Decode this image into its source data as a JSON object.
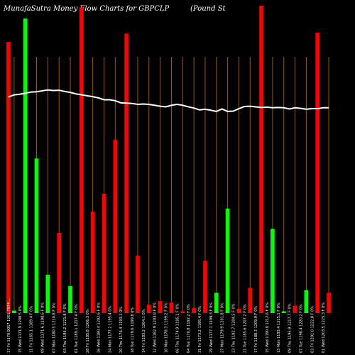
{
  "header": {
    "title": "MunafaSutra  Money Flow  Charts for GBPCLP",
    "subtitle": "(Pound St"
  },
  "chart_data": {
    "type": "bar",
    "title": "MunafaSutra  Money Flow  Charts for GBPCLP",
    "subtitle": "(Pound St",
    "ylim": [
      0,
      100
    ],
    "colors": {
      "up": "#00ff00",
      "down": "#ff0000",
      "line": "#ffffff",
      "grid": "#a05a00",
      "background": "#000000"
    },
    "categories": [
      "17 Fri 1170.9057 1201.7974 ...",
      "16 Thu 1168.0271 1195.7 F 0%",
      "15 Wed 1171.9 1200.5 0%",
      "14 Tue 1172.6 1194.8%",
      "11 Fri 1165.1 1189.4 F 0%",
      "10 Thu 1166.4 1199.2 F 0%",
      "09 Wed 1171.6 1198.6 F 0%",
      "08 Tue 1174.8 1201.1 0%",
      "07 Mon 1180.5 1210.8 F 0%",
      "04 Fri 1183.4 1219.3 0%",
      "03 Thu 1186.2 1221.8 F 0%",
      "02 Wed 1188.6 1220.7 0%",
      "01 Tue 1189.1 1217.4 F 0%",
      "31 Mon 1187.2 1211.9 F 0%",
      "28 Fri 1185.8 1206.3 0%",
      "27 Thu 1182.9 1204.9 0%",
      "26 Wed 1180.4 1202.6 F 0%",
      "25 Tue 1179.6 1198.7 F 0%",
      "24 Mon 1177.2 1195.4 0%",
      "21 Fri 1175.7 1193.2 F 0%",
      "20 Thu 1176.4 1193.1 0%",
      "19 Wed 1178.2 1196.5 F 0%",
      "18 Tue 1179.6 1199.8 0%",
      "17 Mon 1181.5 1202.4 F 0%",
      "14 Fri 1183.2 1204.1 0%",
      "13 Thu 1184.6 1205.7 F 0%",
      "12 Wed 1182.9 1203.8 F 0%",
      "11 Tue 1180.1 1201.3 0%",
      "10 Mon 1178.3 1199.2 F 0%",
      "07 Fri 1176.4 1196.8 0%",
      "06 Thu 1174.9 1195.1 F 0%",
      "05 Wed 1172.3 1193.6 0%",
      "04 Tue 1170.8 1192.2 F 0%",
      "03 Mon 1171.5 1193.9 0%",
      "31 Fri 1173.2 1195.4 F 0%",
      "30 Thu 1175.6 1197.7 0%",
      "29 Wed 1177.1 1199.3 F 0%",
      "28 Tue 1178.5 1200.6 0%",
      "27 Mon 1179.9 1201.8 F 0%",
      "24 Fri 1181.2 1203.1 0%",
      "23 Thu 1182.7 1204.5 F 0%",
      "22 Wed 1184.1 1205.9 0%",
      "21 Tue 1185.6 1207.2 F 0%",
      "20 Mon 1186.9 1208.6 0%",
      "17 Fri 1188.3 1209.9 F 0%",
      "16 Thu 1189.6 1211.3 0%",
      "15 Wed 1190.8 1212.6 F 0%",
      "14 Tue 1192.1 1213.9 0%",
      "13 Mon 1193.4 1215.1 F 0%",
      "10 Fri 1194.6 1216.4 0%",
      "09 Thu 1195.9 1217.7 F 0%",
      "08 Wed 1197.2 1218.9 0%",
      "07 Tue 1198.4 1220.2 F 0%",
      "06 Mon 1199.7 1221.5 0%",
      "03 Fri 1201.0 1222.8 F 0%",
      "02 Thu 1202.2 1224.0 0%",
      "01 Wed 1203.5 1225.3 F 0%",
      "31 Tue 1204.7 1226.6 0%"
    ],
    "series": [
      {
        "kind": "bars",
        "values": [
          {
            "v": 88.2,
            "c": "down"
          },
          {
            "v": 0.8,
            "c": "up"
          },
          {
            "v": 0,
            "c": "up"
          },
          {
            "v": 95.8,
            "c": "up"
          },
          {
            "v": 0,
            "c": "up"
          },
          {
            "v": 50.3,
            "c": "up"
          },
          {
            "v": 0,
            "c": "up"
          },
          {
            "v": 12.5,
            "c": "up"
          },
          {
            "v": 0,
            "c": "up"
          },
          {
            "v": 26.1,
            "c": "down"
          },
          {
            "v": 0,
            "c": "up"
          },
          {
            "v": 8.8,
            "c": "up"
          },
          {
            "v": 0,
            "c": "up"
          },
          {
            "v": 99.5,
            "c": "down"
          },
          {
            "v": 0,
            "c": "up"
          },
          {
            "v": 33.0,
            "c": "down"
          },
          {
            "v": 0,
            "c": "up"
          },
          {
            "v": 38.8,
            "c": "down"
          },
          {
            "v": 0,
            "c": "up"
          },
          {
            "v": 56.4,
            "c": "down"
          },
          {
            "v": 0,
            "c": "up"
          },
          {
            "v": 90.9,
            "c": "down"
          },
          {
            "v": 0,
            "c": "up"
          },
          {
            "v": 18.7,
            "c": "down"
          },
          {
            "v": 0,
            "c": "up"
          },
          {
            "v": 2.7,
            "c": "down"
          },
          {
            "v": 0,
            "c": "up"
          },
          {
            "v": 3.9,
            "c": "down"
          },
          {
            "v": 0,
            "c": "up"
          },
          {
            "v": 3.4,
            "c": "down"
          },
          {
            "v": 0,
            "c": "up"
          },
          {
            "v": 0.6,
            "c": "down"
          },
          {
            "v": 0,
            "c": "up"
          },
          {
            "v": 1.6,
            "c": "down"
          },
          {
            "v": 0,
            "c": "up"
          },
          {
            "v": 17.0,
            "c": "down"
          },
          {
            "v": 0,
            "c": "up"
          },
          {
            "v": 6.6,
            "c": "up"
          },
          {
            "v": 0,
            "c": "up"
          },
          {
            "v": 34.0,
            "c": "up"
          },
          {
            "v": 0,
            "c": "up"
          },
          {
            "v": 1.4,
            "c": "down"
          },
          {
            "v": 0,
            "c": "up"
          },
          {
            "v": 8.2,
            "c": "down"
          },
          {
            "v": 0,
            "c": "up"
          },
          {
            "v": 100,
            "c": "down"
          },
          {
            "v": 0,
            "c": "up"
          },
          {
            "v": 27.4,
            "c": "up"
          },
          {
            "v": 0,
            "c": "up"
          },
          {
            "v": 0.6,
            "c": "up"
          },
          {
            "v": 0,
            "c": "up"
          },
          {
            "v": 2.4,
            "c": "down"
          },
          {
            "v": 0,
            "c": "up"
          },
          {
            "v": 7.5,
            "c": "up"
          },
          {
            "v": 0,
            "c": "up"
          },
          {
            "v": 91.2,
            "c": "down"
          },
          {
            "v": 0,
            "c": "up"
          },
          {
            "v": 6.6,
            "c": "down"
          }
        ]
      }
    ],
    "line": [
      70.3,
      71.0,
      71.2,
      71.5,
      71.9,
      72.0,
      72.3,
      72.6,
      72.4,
      72.5,
      72.1,
      71.8,
      71.3,
      71.0,
      70.7,
      70.4,
      70.0,
      69.4,
      69.4,
      69.1,
      68.4,
      68.3,
      68.2,
      67.9,
      68.0,
      67.9,
      67.6,
      67.3,
      67.1,
      67.6,
      67.9,
      67.6,
      67.1,
      66.7,
      66.1,
      66.3,
      66.0,
      65.6,
      66.4,
      65.6,
      65.7,
      66.5,
      67.2,
      67.3,
      67.1,
      66.9,
      67.0,
      66.8,
      66.9,
      66.8,
      66.4,
      66.8,
      66.6,
      66.3,
      66.5,
      66.5,
      66.8,
      66.8
    ]
  }
}
